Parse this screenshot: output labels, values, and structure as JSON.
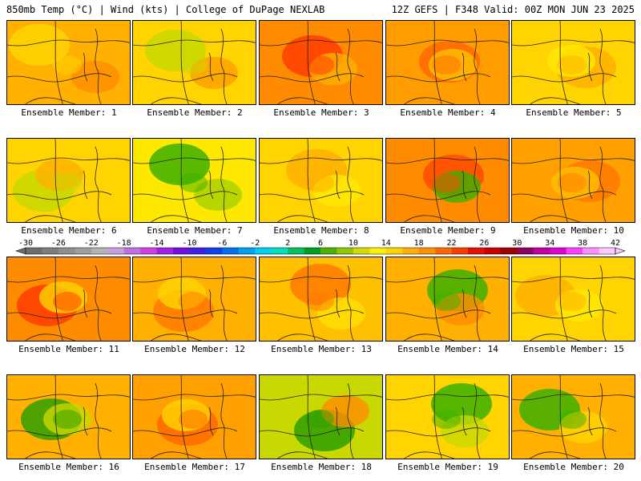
{
  "header": {
    "left": "850mb Temp (°C) | Wind (kts) | College of DuPage NEXLAB",
    "right": "12Z GEFS | F348 Valid: 00Z MON JUN 23 2025"
  },
  "panels": [
    {
      "label": "Ensemble Member: 1",
      "dominant": "#ffb000",
      "accent": "#ffd400",
      "accent2": "#ff8c00"
    },
    {
      "label": "Ensemble Member: 2",
      "dominant": "#ffd400",
      "accent": "#c8d800",
      "accent2": "#ff9c00"
    },
    {
      "label": "Ensemble Member: 3",
      "dominant": "#ff8c00",
      "accent": "#ff3c00",
      "accent2": "#ffb000"
    },
    {
      "label": "Ensemble Member: 4",
      "dominant": "#ff9c00",
      "accent": "#ff6a00",
      "accent2": "#ffc000"
    },
    {
      "label": "Ensemble Member: 5",
      "dominant": "#ffd400",
      "accent": "#ffb000",
      "accent2": "#ffe800"
    },
    {
      "label": "Ensemble Member: 6",
      "dominant": "#ffd400",
      "accent": "#c8d800",
      "accent2": "#ffb000"
    },
    {
      "label": "Ensemble Member: 7",
      "dominant": "#ffe800",
      "accent": "#3cb000",
      "accent2": "#a8d000"
    },
    {
      "label": "Ensemble Member: 8",
      "dominant": "#ffd400",
      "accent": "#ffb000",
      "accent2": "#ffe800"
    },
    {
      "label": "Ensemble Member: 9",
      "dominant": "#ff8c00",
      "accent": "#ff4a00",
      "accent2": "#3cb000"
    },
    {
      "label": "Ensemble Member: 10",
      "dominant": "#ffa000",
      "accent": "#ff7a00",
      "accent2": "#ffc000"
    },
    {
      "label": "Ensemble Member: 11",
      "dominant": "#ff8c00",
      "accent": "#ff3c00",
      "accent2": "#ffd400"
    },
    {
      "label": "Ensemble Member: 12",
      "dominant": "#ffb000",
      "accent": "#ff7a00",
      "accent2": "#ffd400"
    },
    {
      "label": "Ensemble Member: 13",
      "dominant": "#ffc000",
      "accent": "#ff7a00",
      "accent2": "#ffe000"
    },
    {
      "label": "Ensemble Member: 14",
      "dominant": "#ffb000",
      "accent": "#3cb000",
      "accent2": "#ff8c00"
    },
    {
      "label": "Ensemble Member: 15",
      "dominant": "#ffd400",
      "accent": "#ffb000",
      "accent2": "#ffe800"
    },
    {
      "label": "Ensemble Member: 16",
      "dominant": "#ffb000",
      "accent": "#2ea000",
      "accent2": "#c8d800"
    },
    {
      "label": "Ensemble Member: 17",
      "dominant": "#ffa000",
      "accent": "#ff6a00",
      "accent2": "#ffd400"
    },
    {
      "label": "Ensemble Member: 18",
      "dominant": "#c8d800",
      "accent": "#2ea000",
      "accent2": "#ff8c00"
    },
    {
      "label": "Ensemble Member: 19",
      "dominant": "#ffd400",
      "accent": "#3cb000",
      "accent2": "#c8d800"
    },
    {
      "label": "Ensemble Member: 20",
      "dominant": "#ffb000",
      "accent": "#3cb000",
      "accent2": "#ffd400"
    }
  ],
  "colorbar": {
    "labels": [
      "-30",
      "-26",
      "-22",
      "-18",
      "-14",
      "-10",
      "-6",
      "-2",
      "2",
      "6",
      "10",
      "14",
      "18",
      "22",
      "26",
      "30",
      "34",
      "38",
      "42"
    ],
    "colors": [
      "#6e6e6e",
      "#7e7e7e",
      "#8e8e8e",
      "#9e9e9e",
      "#b4b4b4",
      "#c8a0dc",
      "#c070e0",
      "#d040e0",
      "#a020e8",
      "#7010e0",
      "#4020e8",
      "#1040f0",
      "#0070f0",
      "#00a0f0",
      "#00d0f0",
      "#00e0c0",
      "#00c060",
      "#00a020",
      "#50b000",
      "#90c800",
      "#d0dc00",
      "#fff000",
      "#ffd400",
      "#ffb000",
      "#ff9000",
      "#ff6800",
      "#ff3c00",
      "#e81000",
      "#c80000",
      "#a00000",
      "#900060",
      "#c000a0",
      "#e000d0",
      "#ff40ff",
      "#ff90ff",
      "#ffc8ff"
    ]
  }
}
